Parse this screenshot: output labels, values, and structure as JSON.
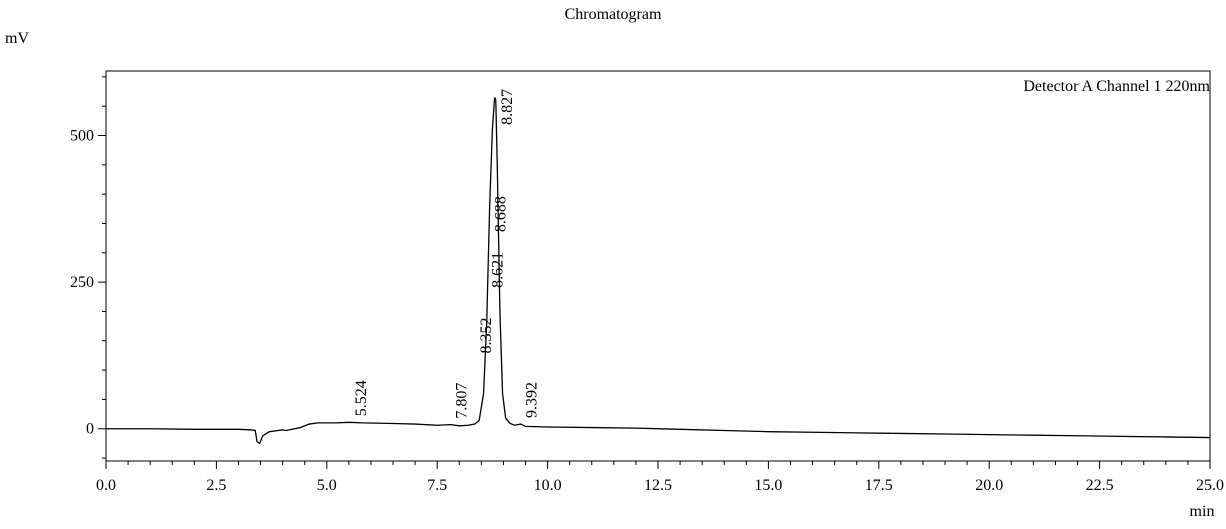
{
  "chart_data": {
    "type": "line",
    "title": "Chromatogram",
    "ylabel": "mV",
    "xlabel": "min",
    "channel_label": "Detector A Channel 1 220nm",
    "xlim": [
      0,
      25
    ],
    "ylim": [
      -55,
      610
    ],
    "x_ticks": [
      0.0,
      2.5,
      5.0,
      7.5,
      10.0,
      12.5,
      15.0,
      17.5,
      20.0,
      22.5,
      25.0
    ],
    "x_tick_labels": [
      "0.0",
      "2.5",
      "5.0",
      "7.5",
      "10.0",
      "12.5",
      "15.0",
      "17.5",
      "20.0",
      "22.5",
      "25.0"
    ],
    "y_ticks": [
      0,
      250,
      500
    ],
    "y_tick_labels": [
      "0",
      "250",
      "500"
    ],
    "grid": false,
    "series": [
      {
        "x": [
          0.0,
          1.0,
          2.0,
          3.0,
          3.3,
          3.38,
          3.42,
          3.48,
          3.55,
          3.7,
          3.9,
          4.0,
          4.08,
          4.2,
          4.4,
          4.6,
          4.8,
          5.2,
          5.524,
          5.8,
          6.5,
          7.0,
          7.5,
          7.807,
          8.0,
          8.2,
          8.352,
          8.45,
          8.55,
          8.621,
          8.688,
          8.75,
          8.8,
          8.827,
          8.86,
          8.92,
          8.98,
          9.05,
          9.15,
          9.25,
          9.392,
          9.5,
          10.0,
          11.0,
          12.0,
          13.0,
          14.0,
          15.0,
          16.0,
          17.0,
          18.0,
          19.0,
          20.0,
          21.0,
          22.0,
          23.0,
          24.0,
          25.0
        ],
        "y": [
          0,
          0,
          -1,
          -1,
          -2,
          -3,
          -22,
          -25,
          -12,
          -5,
          -3,
          -2,
          -3,
          -1,
          2,
          8,
          10,
          10,
          11,
          10,
          9,
          8,
          6,
          7,
          5,
          6,
          8,
          14,
          60,
          180,
          380,
          510,
          565,
          560,
          450,
          200,
          60,
          18,
          9,
          6,
          8,
          4,
          3,
          2,
          1,
          -1,
          -3,
          -5,
          -6,
          -7,
          -8,
          -9,
          -10,
          -11,
          -12,
          -13,
          -14,
          -15
        ]
      }
    ],
    "peak_labels": [
      {
        "x": 5.524,
        "y": 11,
        "label": "5.524"
      },
      {
        "x": 7.807,
        "y": 7,
        "label": "7.807"
      },
      {
        "x": 8.352,
        "y": 118,
        "label": "8.352"
      },
      {
        "x": 8.621,
        "y": 230,
        "label": "8.621"
      },
      {
        "x": 8.688,
        "y": 325,
        "label": "8.688"
      },
      {
        "x": 8.827,
        "y": 508,
        "label": "8.827"
      },
      {
        "x": 9.392,
        "y": 8,
        "label": "9.392"
      }
    ]
  }
}
